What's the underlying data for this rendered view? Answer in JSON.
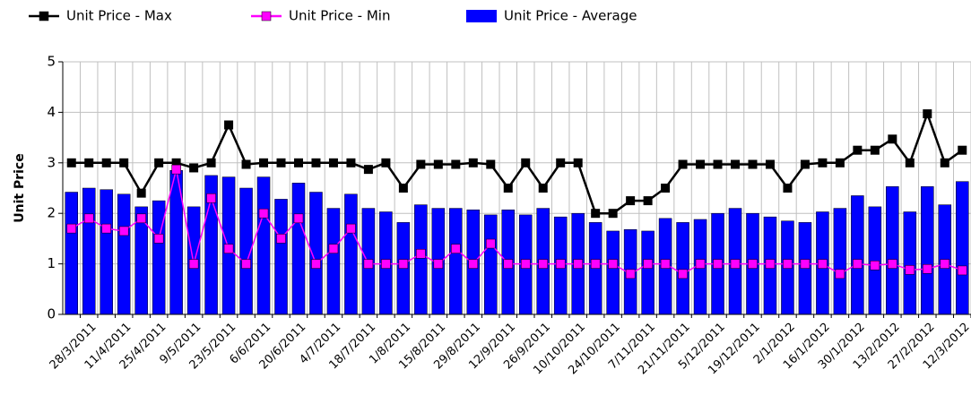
{
  "chart_data": {
    "type": "combo",
    "y_label": "Unit Price",
    "categories": [
      null,
      "28/3/2011",
      null,
      "11/4/2011",
      null,
      "25/4/2011",
      null,
      "9/5/2011",
      null,
      "23/5/2011",
      null,
      "6/6/2011",
      null,
      "20/6/2011",
      null,
      "4/7/2011",
      null,
      "18/7/2011",
      null,
      "1/8/2011",
      null,
      "15/8/2011",
      null,
      "29/8/2011",
      null,
      "12/9/2011",
      null,
      "26/9/2011",
      null,
      "10/10/2011",
      null,
      "24/10/2011",
      null,
      "7/11/2011",
      null,
      "21/11/2011",
      null,
      "5/12/2011",
      null,
      "19/12/2011",
      null,
      "2/1/2012",
      null,
      "16/1/2012",
      null,
      "30/1/2012",
      null,
      "13/2/2012",
      null,
      "27/2/2012",
      null,
      "12/3/2012"
    ],
    "series": [
      {
        "name": "Unit Price - Max",
        "type": "line",
        "color": "#000000",
        "values": [
          3,
          3,
          3,
          3,
          2.4,
          3,
          3,
          2.9,
          3,
          3.75,
          2.97,
          3,
          3,
          3,
          3,
          3,
          3,
          2.87,
          3,
          2.5,
          2.97,
          2.97,
          2.97,
          3,
          2.97,
          2.5,
          3,
          2.5,
          3,
          3,
          2,
          2,
          2.25,
          2.25,
          2.5,
          2.97,
          2.97,
          2.97,
          2.97,
          2.97,
          2.97,
          2.5,
          2.97,
          3,
          3,
          3.25,
          3.25,
          3.47,
          3,
          3.97,
          3,
          3.25
        ]
      },
      {
        "name": "Unit Price - Min",
        "type": "line",
        "color": "#ff00ff",
        "values": [
          1.7,
          1.9,
          1.7,
          1.65,
          1.9,
          1.5,
          2.87,
          1.0,
          2.3,
          1.3,
          1.0,
          2.0,
          1.5,
          1.9,
          1.0,
          1.3,
          1.7,
          1.0,
          1.0,
          1.0,
          1.2,
          1.0,
          1.3,
          1.0,
          1.4,
          1.0,
          1.0,
          1.0,
          1.0,
          1.0,
          1.0,
          1.0,
          0.8,
          1.0,
          1.0,
          0.8,
          1.0,
          1.0,
          1.0,
          1.0,
          1.0,
          1.0,
          1.0,
          1.0,
          0.8,
          1.0,
          0.97,
          1.0,
          0.88,
          0.9,
          1.0,
          0.87
        ]
      },
      {
        "name": "Unit Price - Average",
        "type": "bar",
        "color": "#0000ff",
        "values": [
          2.42,
          2.5,
          2.47,
          2.38,
          2.13,
          2.25,
          2.85,
          2.13,
          2.75,
          2.72,
          2.5,
          2.72,
          2.28,
          2.6,
          2.42,
          2.1,
          2.38,
          2.1,
          2.03,
          1.82,
          2.17,
          2.1,
          2.1,
          2.07,
          1.97,
          2.07,
          1.97,
          2.1,
          1.93,
          2.0,
          1.82,
          1.65,
          1.68,
          1.65,
          1.9,
          1.82,
          1.88,
          2.0,
          2.1,
          2.0,
          1.93,
          1.85,
          1.82,
          2.03,
          2.1,
          2.35,
          2.13,
          2.53,
          2.03,
          2.53,
          2.17,
          2.63
        ]
      }
    ],
    "ylim": [
      0,
      5
    ],
    "yticks": [
      0,
      1,
      2,
      3,
      4,
      5
    ],
    "grid": true
  }
}
